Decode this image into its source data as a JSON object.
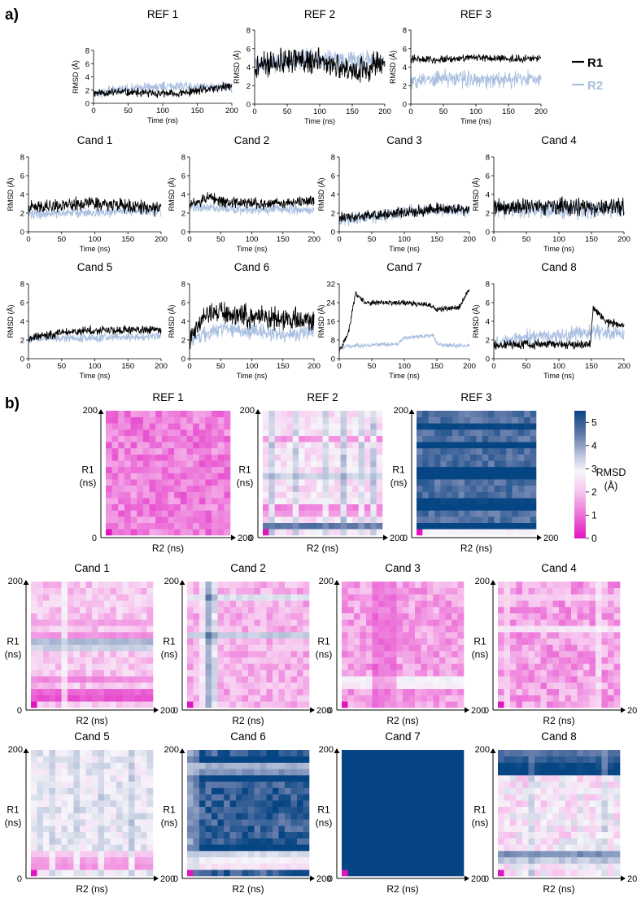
{
  "panel_labels": {
    "a": "a)",
    "b": "b)"
  },
  "line_axes": {
    "xlabel": "Time (ns)",
    "ylabel": "RMSD (Å)",
    "xticks": [
      0,
      50,
      100,
      150,
      200
    ],
    "xlim": [
      0,
      200
    ]
  },
  "legend": [
    {
      "name": "R1",
      "color": "#000000"
    },
    {
      "name": "R2",
      "color": "#a9bfe0"
    }
  ],
  "heat_axes": {
    "xlabel": "R2 (ns)",
    "ylabel_top": "R1",
    "ylabel_bottom": "(ns)",
    "origin": "0",
    "max": "200"
  },
  "colorbar": {
    "title_line1": "RMSD",
    "title_line2": "(Å)",
    "ticks": [
      0,
      1,
      2,
      3,
      4,
      5
    ],
    "range": [
      0,
      5.5
    ],
    "stops": [
      {
        "v": 0,
        "color": "#e015c0"
      },
      {
        "v": 1,
        "color": "#ec6fd8"
      },
      {
        "v": 2,
        "color": "#f7c4ee"
      },
      {
        "v": 2.9,
        "color": "#f6f6fa"
      },
      {
        "v": 3.5,
        "color": "#c2cbe0"
      },
      {
        "v": 4.5,
        "color": "#5f78a8"
      },
      {
        "v": 5.5,
        "color": "#064583"
      }
    ]
  },
  "chart_data": [
    {
      "type": "line",
      "title": "REF 1",
      "ylim": [
        0,
        8
      ],
      "yticks": [
        0,
        2,
        4,
        6,
        8
      ],
      "series": [
        {
          "name": "R1",
          "keys": [
            [
              0,
              1.6
            ],
            [
              40,
              1.7
            ],
            [
              80,
              1.5
            ],
            [
              120,
              1.4
            ],
            [
              150,
              1.9
            ],
            [
              200,
              2.6
            ]
          ],
          "noise": 0.55,
          "seed": 11
        },
        {
          "name": "R2",
          "keys": [
            [
              0,
              1.4
            ],
            [
              50,
              2.2
            ],
            [
              100,
              2.5
            ],
            [
              150,
              2.6
            ],
            [
              200,
              2.4
            ]
          ],
          "noise": 0.65,
          "seed": 12
        }
      ]
    },
    {
      "type": "line",
      "title": "REF 2",
      "ylim": [
        0,
        8
      ],
      "yticks": [
        0,
        2,
        4,
        6,
        8
      ],
      "series": [
        {
          "name": "R1",
          "keys": [
            [
              0,
              4.0
            ],
            [
              50,
              4.8
            ],
            [
              100,
              4.5
            ],
            [
              150,
              3.6
            ],
            [
              200,
              4.4
            ]
          ],
          "noise": 1.2,
          "seed": 21
        },
        {
          "name": "R2",
          "keys": [
            [
              0,
              4.2
            ],
            [
              50,
              4.8
            ],
            [
              100,
              5.0
            ],
            [
              150,
              4.6
            ],
            [
              200,
              4.5
            ]
          ],
          "noise": 0.9,
          "seed": 22
        }
      ]
    },
    {
      "type": "line",
      "title": "REF 3",
      "ylim": [
        0,
        8
      ],
      "yticks": [
        0,
        2,
        4,
        6,
        8
      ],
      "series": [
        {
          "name": "R1",
          "keys": [
            [
              0,
              4.9
            ],
            [
              50,
              4.8
            ],
            [
              100,
              5.0
            ],
            [
              150,
              4.9
            ],
            [
              200,
              4.9
            ]
          ],
          "noise": 0.35,
          "seed": 31
        },
        {
          "name": "R2",
          "keys": [
            [
              0,
              2.4
            ],
            [
              50,
              2.8
            ],
            [
              100,
              2.6
            ],
            [
              150,
              2.6
            ],
            [
              200,
              2.8
            ]
          ],
          "noise": 0.75,
          "seed": 32
        }
      ]
    },
    {
      "type": "line",
      "title": "Cand 1",
      "ylim": [
        0,
        8
      ],
      "yticks": [
        0,
        2,
        4,
        6,
        8
      ],
      "series": [
        {
          "name": "R1",
          "keys": [
            [
              0,
              2.5
            ],
            [
              50,
              2.9
            ],
            [
              100,
              3.1
            ],
            [
              150,
              2.7
            ],
            [
              200,
              2.4
            ]
          ],
          "noise": 0.6,
          "seed": 41
        },
        {
          "name": "R2",
          "keys": [
            [
              0,
              1.8
            ],
            [
              50,
              2.0
            ],
            [
              100,
              2.0
            ],
            [
              150,
              2.2
            ],
            [
              200,
              2.1
            ]
          ],
          "noise": 0.45,
          "seed": 42
        }
      ]
    },
    {
      "type": "line",
      "title": "Cand 2",
      "ylim": [
        0,
        8
      ],
      "yticks": [
        0,
        2,
        4,
        6,
        8
      ],
      "series": [
        {
          "name": "R1",
          "keys": [
            [
              0,
              2.8
            ],
            [
              30,
              3.6
            ],
            [
              60,
              3.2
            ],
            [
              120,
              3.0
            ],
            [
              200,
              3.2
            ]
          ],
          "noise": 0.5,
          "seed": 51
        },
        {
          "name": "R2",
          "keys": [
            [
              0,
              2.6
            ],
            [
              50,
              2.6
            ],
            [
              100,
              2.3
            ],
            [
              150,
              2.5
            ],
            [
              200,
              2.2
            ]
          ],
          "noise": 0.45,
          "seed": 52
        }
      ]
    },
    {
      "type": "line",
      "title": "Cand 3",
      "ylim": [
        0,
        8
      ],
      "yticks": [
        0,
        2,
        4,
        6,
        8
      ],
      "series": [
        {
          "name": "R1",
          "keys": [
            [
              0,
              1.5
            ],
            [
              50,
              1.7
            ],
            [
              100,
              2.0
            ],
            [
              150,
              2.5
            ],
            [
              200,
              2.3
            ]
          ],
          "noise": 0.5,
          "seed": 61
        },
        {
          "name": "R2",
          "keys": [
            [
              0,
              1.3
            ],
            [
              50,
              1.6
            ],
            [
              100,
              2.1
            ],
            [
              150,
              2.3
            ],
            [
              200,
              2.2
            ]
          ],
          "noise": 0.6,
          "seed": 62
        }
      ]
    },
    {
      "type": "line",
      "title": "Cand 4",
      "ylim": [
        0,
        8
      ],
      "yticks": [
        0,
        2,
        4,
        6,
        8
      ],
      "series": [
        {
          "name": "R1",
          "keys": [
            [
              0,
              2.5
            ],
            [
              50,
              2.7
            ],
            [
              100,
              2.7
            ],
            [
              150,
              2.5
            ],
            [
              200,
              2.6
            ]
          ],
          "noise": 0.8,
          "seed": 71
        },
        {
          "name": "R2",
          "keys": [
            [
              0,
              2.3
            ],
            [
              50,
              2.4
            ],
            [
              100,
              2.4
            ],
            [
              150,
              2.3
            ],
            [
              200,
              2.5
            ]
          ],
          "noise": 0.8,
          "seed": 72
        }
      ]
    },
    {
      "type": "line",
      "title": "Cand 5",
      "ylim": [
        0,
        8
      ],
      "yticks": [
        0,
        2,
        4,
        6,
        8
      ],
      "series": [
        {
          "name": "R1",
          "keys": [
            [
              0,
              2.1
            ],
            [
              50,
              2.8
            ],
            [
              100,
              3.0
            ],
            [
              150,
              3.1
            ],
            [
              200,
              3.1
            ]
          ],
          "noise": 0.4,
          "seed": 81
        },
        {
          "name": "R2",
          "keys": [
            [
              0,
              2.2
            ],
            [
              50,
              2.2
            ],
            [
              100,
              2.2
            ],
            [
              150,
              2.3
            ],
            [
              200,
              2.4
            ]
          ],
          "noise": 0.4,
          "seed": 82
        }
      ]
    },
    {
      "type": "line",
      "title": "Cand 6",
      "ylim": [
        0,
        8
      ],
      "yticks": [
        0,
        2,
        4,
        6,
        8
      ],
      "series": [
        {
          "name": "R1",
          "keys": [
            [
              0,
              2.0
            ],
            [
              20,
              4.5
            ],
            [
              45,
              5.2
            ],
            [
              90,
              4.5
            ],
            [
              150,
              4.3
            ],
            [
              200,
              4.0
            ]
          ],
          "noise": 1.0,
          "seed": 91
        },
        {
          "name": "R2",
          "keys": [
            [
              0,
              2.0
            ],
            [
              50,
              3.2
            ],
            [
              100,
              3.0
            ],
            [
              150,
              2.6
            ],
            [
              200,
              2.9
            ]
          ],
          "noise": 0.7,
          "seed": 92
        }
      ]
    },
    {
      "type": "line",
      "title": "Cand 7",
      "ylim": [
        0,
        32
      ],
      "yticks": [
        0,
        8,
        16,
        24,
        32
      ],
      "series": [
        {
          "name": "R1",
          "keys": [
            [
              0,
              3
            ],
            [
              15,
              12
            ],
            [
              25,
              28
            ],
            [
              40,
              24
            ],
            [
              100,
              24
            ],
            [
              140,
              23
            ],
            [
              150,
              21
            ],
            [
              185,
              22
            ],
            [
              200,
              30
            ]
          ],
          "noise": 1.0,
          "seed": 101
        },
        {
          "name": "R2",
          "keys": [
            [
              0,
              5
            ],
            [
              50,
              6
            ],
            [
              90,
              6.5
            ],
            [
              100,
              9
            ],
            [
              145,
              10
            ],
            [
              150,
              6
            ],
            [
              200,
              5.5
            ]
          ],
          "noise": 0.8,
          "seed": 102
        }
      ]
    },
    {
      "type": "line",
      "title": "Cand 8",
      "ylim": [
        0,
        8
      ],
      "yticks": [
        0,
        2,
        4,
        6,
        8
      ],
      "series": [
        {
          "name": "R1",
          "keys": [
            [
              0,
              1.4
            ],
            [
              50,
              1.6
            ],
            [
              100,
              1.5
            ],
            [
              148,
              1.5
            ],
            [
              153,
              5.5
            ],
            [
              170,
              4.0
            ],
            [
              200,
              3.6
            ]
          ],
          "noise": 0.4,
          "seed": 111
        },
        {
          "name": "R2",
          "keys": [
            [
              0,
              1.6
            ],
            [
              50,
              2.3
            ],
            [
              100,
              2.4
            ],
            [
              150,
              2.8
            ],
            [
              200,
              2.7
            ]
          ],
          "noise": 0.7,
          "seed": 112
        }
      ]
    },
    {
      "type": "heatmap",
      "title": "REF 1",
      "grid": 20,
      "base": 1.2,
      "amp": 0.55,
      "rowmul": [],
      "colmul": [],
      "rowadd": [],
      "coladd": [],
      "seed": 211
    },
    {
      "type": "heatmap",
      "title": "REF 2",
      "grid": 20,
      "base": 2.5,
      "amp": 0.5,
      "colbands": [
        [
          1,
          4.2
        ],
        [
          5,
          4.0
        ],
        [
          10,
          3.8
        ],
        [
          13,
          4.3
        ],
        [
          16,
          3.9
        ],
        [
          18,
          4.1
        ]
      ],
      "rowbands": [
        [
          1,
          4.6
        ],
        [
          3,
          1.5
        ],
        [
          4,
          1.2
        ],
        [
          9,
          3.4
        ],
        [
          15,
          1.4
        ]
      ],
      "seed": 212
    },
    {
      "type": "heatmap",
      "title": "REF 3",
      "grid": 20,
      "base": 4.7,
      "amp": 0.4,
      "rowbands": [
        [
          0,
          2.8
        ],
        [
          1,
          5.6
        ],
        [
          4,
          5.6
        ],
        [
          5,
          5.5
        ],
        [
          9,
          5.6
        ],
        [
          10,
          5.6
        ],
        [
          14,
          5.6
        ],
        [
          17,
          5.5
        ]
      ],
      "seed": 213
    },
    {
      "type": "heatmap",
      "title": "Cand 1",
      "grid": 20,
      "base": 2.1,
      "amp": 0.5,
      "rowbands": [
        [
          1,
          0.7
        ],
        [
          2,
          0.9
        ],
        [
          4,
          1.3
        ],
        [
          9,
          3.4
        ],
        [
          10,
          3.7
        ],
        [
          11,
          1.4
        ],
        [
          13,
          1.6
        ]
      ],
      "colbands": [
        [
          5,
          3.1
        ]
      ],
      "seed": 214
    },
    {
      "type": "heatmap",
      "title": "Cand 2",
      "grid": 20,
      "base": 1.8,
      "amp": 0.5,
      "colbands": [
        [
          3,
          5.4
        ],
        [
          4,
          4.2
        ],
        [
          2,
          3.2
        ]
      ],
      "rowbands": [
        [
          11,
          3.5
        ],
        [
          17,
          3.2
        ]
      ],
      "seed": 215
    },
    {
      "type": "heatmap",
      "title": "Cand 3",
      "grid": 20,
      "base": 1.6,
      "amp": 0.5,
      "colbands": [
        [
          5,
          0.7
        ],
        [
          6,
          0.8
        ],
        [
          7,
          0.8
        ],
        [
          8,
          0.9
        ]
      ],
      "rowbands": [
        [
          3,
          2.7
        ],
        [
          4,
          2.9
        ]
      ],
      "seed": 216
    },
    {
      "type": "heatmap",
      "title": "Cand 4",
      "grid": 20,
      "base": 1.6,
      "amp": 0.6,
      "colbands": [
        [
          16,
          3.0
        ],
        [
          1,
          2.6
        ]
      ],
      "rowbands": [
        [
          17,
          2.2
        ],
        [
          12,
          2.6
        ]
      ],
      "seed": 217
    },
    {
      "type": "heatmap",
      "title": "Cand 5",
      "grid": 20,
      "base": 3.0,
      "amp": 0.45,
      "rowbands": [
        [
          1,
          1.4
        ],
        [
          2,
          1.6
        ],
        [
          3,
          2.1
        ]
      ],
      "colbands": [
        [
          3,
          3.5
        ],
        [
          7,
          3.6
        ],
        [
          11,
          3.6
        ],
        [
          16,
          3.7
        ]
      ],
      "seed": 218
    },
    {
      "type": "heatmap",
      "title": "Cand 6",
      "grid": 20,
      "base": 5.0,
      "amp": 0.6,
      "rowbands": [
        [
          1,
          2.5
        ],
        [
          2,
          2.8
        ],
        [
          3,
          3.3
        ],
        [
          4,
          5.6
        ],
        [
          15,
          5.6
        ],
        [
          16,
          4.2
        ],
        [
          17,
          3.8
        ],
        [
          18,
          5.6
        ]
      ],
      "colbands": [
        [
          0,
          3.4
        ],
        [
          1,
          3.8
        ]
      ],
      "seed": 219
    },
    {
      "type": "heatmap",
      "title": "Cand 7",
      "grid": 20,
      "base": 5.5,
      "amp": 0.0,
      "seed": 220
    },
    {
      "type": "heatmap",
      "title": "Cand 8",
      "grid": 20,
      "base": 2.6,
      "amp": 0.7,
      "rowbands": [
        [
          17,
          5.5
        ],
        [
          18,
          5.0
        ],
        [
          19,
          4.6
        ],
        [
          16,
          5.6
        ],
        [
          3,
          4.2
        ],
        [
          2,
          3.5
        ]
      ],
      "colbands": [
        [
          5,
          4.0
        ],
        [
          17,
          3.8
        ]
      ],
      "seed": 221
    }
  ]
}
